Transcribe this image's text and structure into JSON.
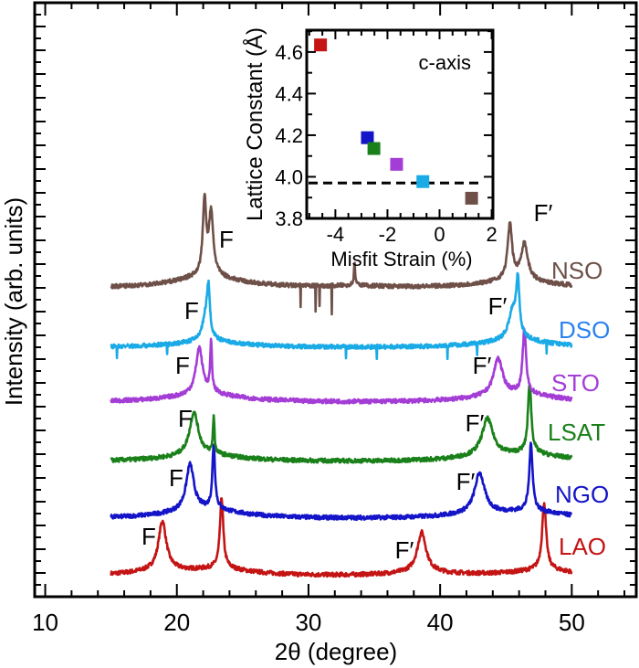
{
  "chart_data": [
    {
      "type": "line",
      "xlabel": "2θ (degree)",
      "ylabel": "Intensity (arb. units)",
      "xlim": [
        9.2,
        54.9
      ],
      "ylim": [
        0,
        100
      ],
      "x_ticks": [
        "10",
        "20",
        "30",
        "40",
        "50"
      ],
      "y_tick_labels": false,
      "x_range_measured": [
        15,
        50
      ],
      "series": [
        {
          "name": "LAO",
          "color": "#c41414",
          "label_color": "#c41414",
          "offset": 3.5,
          "peaks": [
            {
              "x": 18.9,
              "h": 8,
              "w": 0.35
            },
            {
              "x": 23.4,
              "h": 11.5,
              "w": 0.15
            },
            {
              "x": 38.6,
              "h": 6.5,
              "w": 0.4
            },
            {
              "x": 47.9,
              "h": 11,
              "w": 0.18
            }
          ]
        },
        {
          "name": "NGO",
          "color": "#1414c8",
          "label_color": "#1414c8",
          "offset": 13.2,
          "peaks": [
            {
              "x": 21.0,
              "h": 7.5,
              "w": 0.35
            },
            {
              "x": 22.8,
              "h": 10.5,
              "w": 0.12
            },
            {
              "x": 43.0,
              "h": 6.5,
              "w": 0.45
            },
            {
              "x": 46.9,
              "h": 11,
              "w": 0.15
            }
          ]
        },
        {
          "name": "LSAT",
          "color": "#1a801a",
          "label_color": "#1a801a",
          "offset": 22.8,
          "peaks": [
            {
              "x": 21.3,
              "h": 7,
              "w": 0.4
            },
            {
              "x": 22.8,
              "h": 6,
              "w": 0.07
            },
            {
              "x": 43.6,
              "h": 6,
              "w": 0.5
            },
            {
              "x": 46.8,
              "h": 11.5,
              "w": 0.15
            }
          ]
        },
        {
          "name": "STO",
          "color": "#a43cd6",
          "label_color": "#a43cd6",
          "offset": 32.8,
          "peaks": [
            {
              "x": 21.7,
              "h": 7.5,
              "w": 0.3
            },
            {
              "x": 22.6,
              "h": 8,
              "w": 0.08
            },
            {
              "x": 44.4,
              "h": 6,
              "w": 0.4
            },
            {
              "x": 46.4,
              "h": 10.5,
              "w": 0.15
            }
          ]
        },
        {
          "name": "DSO",
          "color": "#1aaae6",
          "label_color": "#2a82f0",
          "offset": 42,
          "peaks": [
            {
              "x": 22.2,
              "h": 4,
              "w": 0.3
            },
            {
              "x": 22.4,
              "h": 7,
              "w": 0.12
            },
            {
              "x": 45.5,
              "h": 4.5,
              "w": 0.35
            },
            {
              "x": 45.9,
              "h": 9,
              "w": 0.15
            }
          ]
        },
        {
          "name": "NSO",
          "color": "#6e5048",
          "label_color": "#6e5048",
          "offset": 52,
          "peaks": [
            {
              "x": 22.1,
              "h": 12,
              "w": 0.15
            },
            {
              "x": 22.6,
              "h": 10,
              "w": 0.2
            },
            {
              "x": 45.3,
              "h": 9,
              "w": 0.2
            },
            {
              "x": 46.4,
              "h": 6,
              "w": 0.3
            },
            {
              "x": 33.5,
              "h": 3.5,
              "w": 0.06
            }
          ]
        }
      ],
      "annotations": [
        {
          "text": "F",
          "series": "LAO"
        },
        {
          "text": "F′",
          "series": "LAO"
        },
        {
          "text": "F",
          "series": "NGO"
        },
        {
          "text": "F′",
          "series": "NGO"
        },
        {
          "text": "F",
          "series": "LSAT"
        },
        {
          "text": "F′",
          "series": "LSAT"
        },
        {
          "text": "F",
          "series": "STO"
        },
        {
          "text": "F′",
          "series": "STO"
        },
        {
          "text": "F",
          "series": "DSO"
        },
        {
          "text": "F′",
          "series": "DSO"
        },
        {
          "text": "F",
          "series": "NSO"
        },
        {
          "text": "F′",
          "series": "NSO"
        }
      ]
    },
    {
      "type": "scatter",
      "title": "c-axis",
      "xlabel": "Misfit Strain (%)",
      "ylabel": "Lattice Constant (Å)",
      "xlim": [
        -5.1,
        2.05
      ],
      "ylim": [
        3.8,
        4.705
      ],
      "x_ticks": [
        "-4",
        "-2",
        "0",
        "2"
      ],
      "y_ticks": [
        "3.8",
        "4.0",
        "4.2",
        "4.4",
        "4.6"
      ],
      "reference_line": {
        "y": 3.97,
        "style": "dashed"
      },
      "points": [
        {
          "label": "LAO",
          "x": -4.57,
          "y": 4.634,
          "color": "#c41414"
        },
        {
          "label": "NGO",
          "x": -2.77,
          "y": 4.188,
          "color": "#1414c8"
        },
        {
          "label": "LSAT",
          "x": -2.52,
          "y": 4.136,
          "color": "#1a801a"
        },
        {
          "label": "STO",
          "x": -1.65,
          "y": 4.06,
          "color": "#a43cd6"
        },
        {
          "label": "DSO",
          "x": -0.64,
          "y": 3.977,
          "color": "#1aaae6"
        },
        {
          "label": "NSO",
          "x": 1.23,
          "y": 3.897,
          "color": "#6e5048"
        }
      ]
    }
  ]
}
